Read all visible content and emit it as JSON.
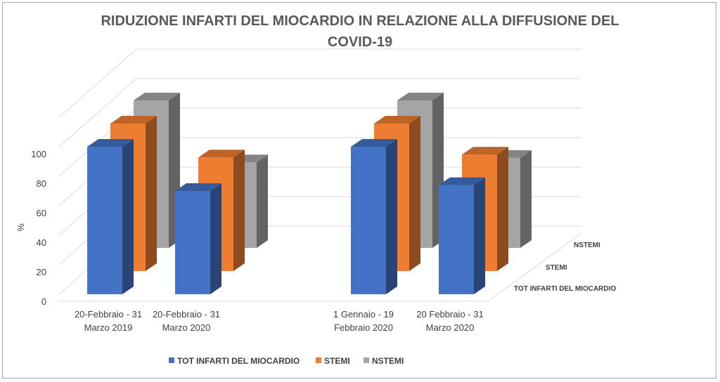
{
  "chart_data": {
    "type": "bar",
    "subtype": "3d-column",
    "title": [
      "RIDUZIONE INFARTI DEL MIOCARDIO IN RELAZIONE ALLA DIFFUSIONE DEL",
      "COVID-19"
    ],
    "ylabel": "%",
    "ylim": [
      0,
      100
    ],
    "yticks": [
      "0",
      "20",
      "40",
      "60",
      "80",
      "100"
    ],
    "categories": [
      [
        "20-Febbraio - 31",
        "Marzo 2019"
      ],
      [
        "20-Febbraio - 31",
        "Marzo 2020"
      ],
      [
        "1 Gennaio -  19",
        "Febbraio 2020"
      ],
      [
        "20 Febbraio - 31",
        "Marzo 2020"
      ]
    ],
    "depth_labels": [
      "TOT INFARTI DEL MIOCARDIO",
      "STEMI",
      "NSTEMI"
    ],
    "series": [
      {
        "name": "TOT INFARTI DEL MIOCARDIO",
        "values": [
          100,
          70,
          100,
          74
        ],
        "color": "#4472c4"
      },
      {
        "name": "STEMI",
        "values": [
          100,
          77,
          100,
          79
        ],
        "color": "#ed7d31"
      },
      {
        "name": "NSTEMI",
        "values": [
          100,
          58,
          100,
          61
        ],
        "color": "#a5a5a5"
      }
    ],
    "grid": true,
    "legend": "bottom"
  }
}
